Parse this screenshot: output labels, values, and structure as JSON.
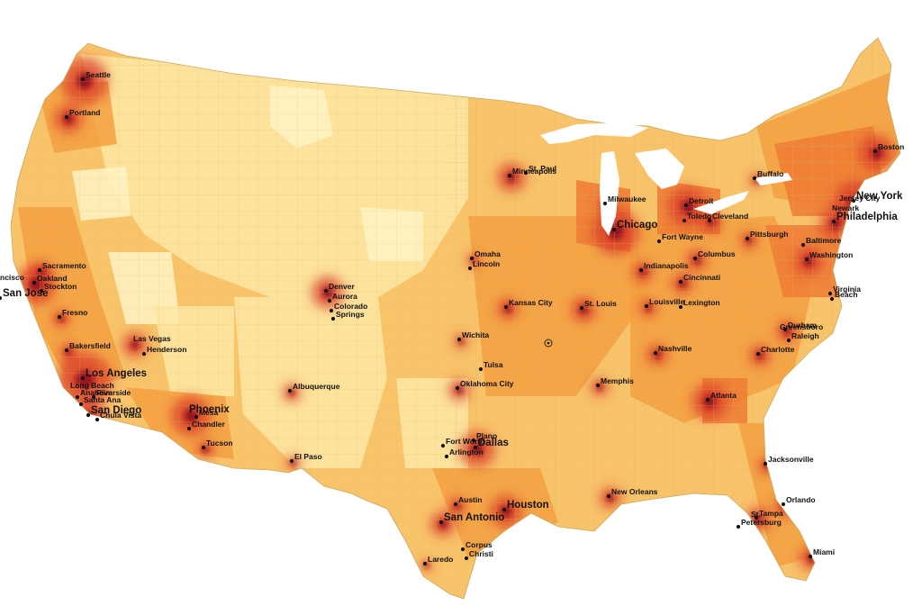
{
  "map": {
    "palette": {
      "land_light": "#fde7a3",
      "land_pale": "#fff3c4",
      "land_mid": "#f9c36a",
      "land_orange": "#f5a040",
      "land_deep": "#ee7a32",
      "urban_red": "#d9382a",
      "urban_dark": "#8f1020",
      "border": "#d9c07a"
    },
    "cities": [
      {
        "name": "Seattle",
        "size": "small"
      },
      {
        "name": "Portland",
        "size": "small"
      },
      {
        "name": "Sacramento",
        "size": "small"
      },
      {
        "name": "ncisco",
        "size": "small"
      },
      {
        "name": "Oakland",
        "size": "small"
      },
      {
        "name": "San Jose",
        "size": "large"
      },
      {
        "name": "Stockton",
        "size": "small"
      },
      {
        "name": "Fresno",
        "size": "small"
      },
      {
        "name": "Bakersfield",
        "size": "small"
      },
      {
        "name": "Las Vegas",
        "size": "small"
      },
      {
        "name": "Henderson",
        "size": "small"
      },
      {
        "name": "Los Angeles",
        "size": "large"
      },
      {
        "name": "Long Beach",
        "size": "small"
      },
      {
        "name": "Anaheim",
        "size": "small"
      },
      {
        "name": "Santa Ana",
        "size": "small"
      },
      {
        "name": "Riverside",
        "size": "small"
      },
      {
        "name": "San Diego",
        "size": "large"
      },
      {
        "name": "Chula Vista",
        "size": "small"
      },
      {
        "name": "Phoenix",
        "size": "large"
      },
      {
        "name": "Mesa",
        "size": "small"
      },
      {
        "name": "Chandler",
        "size": "small"
      },
      {
        "name": "Tucson",
        "size": "small"
      },
      {
        "name": "Denver",
        "size": "small"
      },
      {
        "name": "Aurora",
        "size": "small"
      },
      {
        "name": "Colorado",
        "size": "small"
      },
      {
        "name": "Springs",
        "size": "small"
      },
      {
        "name": "Albuquerque",
        "size": "small"
      },
      {
        "name": "El Paso",
        "size": "small"
      },
      {
        "name": "Minneapolis",
        "size": "small"
      },
      {
        "name": "St. Paul",
        "size": "small"
      },
      {
        "name": "Omaha",
        "size": "small"
      },
      {
        "name": "Lincoln",
        "size": "small"
      },
      {
        "name": "Kansas City",
        "size": "small"
      },
      {
        "name": "Wichita",
        "size": "small"
      },
      {
        "name": "Tulsa",
        "size": "small"
      },
      {
        "name": "Oklahoma City",
        "size": "small"
      },
      {
        "name": "Plano",
        "size": "small"
      },
      {
        "name": "Fort Worth",
        "size": "small"
      },
      {
        "name": "Dallas",
        "size": "large"
      },
      {
        "name": "Arlington",
        "size": "small"
      },
      {
        "name": "Austin",
        "size": "small"
      },
      {
        "name": "San Antonio",
        "size": "large"
      },
      {
        "name": "Houston",
        "size": "large"
      },
      {
        "name": "Corpus",
        "size": "small"
      },
      {
        "name": "Christi",
        "size": "small"
      },
      {
        "name": "Laredo",
        "size": "small"
      },
      {
        "name": "Milwaukee",
        "size": "small"
      },
      {
        "name": "Chicago",
        "size": "large"
      },
      {
        "name": "Detroit",
        "size": "small"
      },
      {
        "name": "Toledo",
        "size": "small"
      },
      {
        "name": "Cleveland",
        "size": "small"
      },
      {
        "name": "Fort Wayne",
        "size": "small"
      },
      {
        "name": "Indianapolis",
        "size": "small"
      },
      {
        "name": "Columbus",
        "size": "small"
      },
      {
        "name": "Cincinnati",
        "size": "small"
      },
      {
        "name": "Pittsburgh",
        "size": "small"
      },
      {
        "name": "St. Louis",
        "size": "small"
      },
      {
        "name": "Louisville",
        "size": "small"
      },
      {
        "name": "Lexington",
        "size": "small"
      },
      {
        "name": "Nashville",
        "size": "small"
      },
      {
        "name": "Memphis",
        "size": "small"
      },
      {
        "name": "Atlanta",
        "size": "small"
      },
      {
        "name": "New Orleans",
        "size": "small"
      },
      {
        "name": "Jacksonville",
        "size": "small"
      },
      {
        "name": "Orlando",
        "size": "small"
      },
      {
        "name": "Tampa",
        "size": "small"
      },
      {
        "name": "St.",
        "size": "small"
      },
      {
        "name": "Petersburg",
        "size": "small"
      },
      {
        "name": "Miami",
        "size": "small"
      },
      {
        "name": "Charlotte",
        "size": "small"
      },
      {
        "name": "Greensboro",
        "size": "small"
      },
      {
        "name": "Durham",
        "size": "small"
      },
      {
        "name": "Raleigh",
        "size": "small"
      },
      {
        "name": "Virginia",
        "size": "small"
      },
      {
        "name": "Beach",
        "size": "small"
      },
      {
        "name": "Washington",
        "size": "small"
      },
      {
        "name": "Baltimore",
        "size": "small"
      },
      {
        "name": "Philadelphia",
        "size": "large"
      },
      {
        "name": "Newark",
        "size": "small"
      },
      {
        "name": "Jersey City",
        "size": "small"
      },
      {
        "name": "New York",
        "size": "large"
      },
      {
        "name": "Buffalo",
        "size": "small"
      },
      {
        "name": "Boston",
        "size": "small"
      }
    ]
  }
}
